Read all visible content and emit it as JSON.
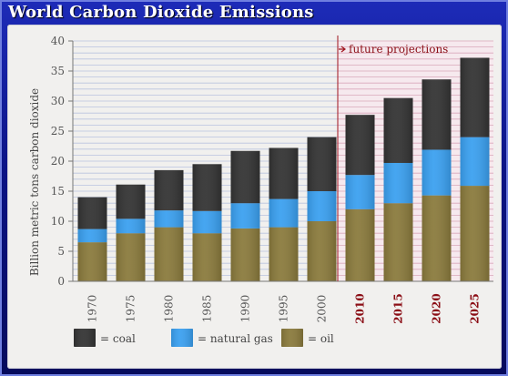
{
  "title": "World Carbon Dioxide Emissions",
  "chart_data": {
    "type": "bar",
    "stacked": true,
    "categories": [
      "1970",
      "1975",
      "1980",
      "1985",
      "1990",
      "1995",
      "2000",
      "2010",
      "2015",
      "2020",
      "2025"
    ],
    "series": [
      {
        "name": "oil",
        "color": "#8a7a3c",
        "values": [
          6.5,
          8.0,
          9.0,
          8.0,
          8.8,
          9.0,
          10.0,
          12.0,
          13.0,
          14.3,
          15.9
        ]
      },
      {
        "name": "natural gas",
        "color": "#3aa0f0",
        "values": [
          2.2,
          2.4,
          2.8,
          3.7,
          4.2,
          4.7,
          5.0,
          5.7,
          6.7,
          7.6,
          8.1
        ]
      },
      {
        "name": "coal",
        "color": "#333333",
        "values": [
          5.3,
          5.7,
          6.7,
          7.8,
          8.7,
          8.5,
          9.0,
          10.0,
          10.8,
          11.7,
          13.2
        ]
      }
    ],
    "ylabel": "Billion metric tons carbon dioxide",
    "xlabel": "",
    "ylim": [
      0,
      40
    ],
    "yticks": [
      0,
      5,
      10,
      15,
      20,
      25,
      30,
      35,
      40
    ],
    "annotation": "future projections",
    "projection_start_index": 7,
    "grid": true,
    "legend_position": "bottom"
  },
  "legend": {
    "coal": "= coal",
    "gas": "= natural gas",
    "oil": "= oil"
  },
  "colors": {
    "frame": "#0b1385",
    "projection_line": "#a0141e",
    "projection_label": "#8b0e16",
    "projection_tick_label": "#8b0e16",
    "grid_history": "#b9c3df",
    "grid_projection": "#d9a8ba"
  }
}
